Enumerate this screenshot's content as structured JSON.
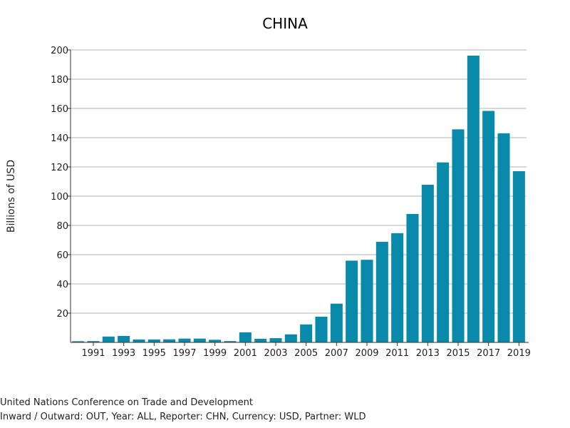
{
  "chart_data": {
    "type": "bar",
    "title": "CHINA",
    "xlabel": "",
    "ylabel": "Billions of USD",
    "ylim": [
      0,
      200
    ],
    "yticks": [
      20,
      40,
      60,
      80,
      100,
      120,
      140,
      160,
      180,
      200
    ],
    "grid": true,
    "bar_color": "#0a8aaa",
    "categories": [
      "1990",
      "1991",
      "1992",
      "1993",
      "1994",
      "1995",
      "1996",
      "1997",
      "1998",
      "1999",
      "2000",
      "2001",
      "2002",
      "2003",
      "2004",
      "2005",
      "2006",
      "2007",
      "2008",
      "2009",
      "2010",
      "2011",
      "2012",
      "2013",
      "2014",
      "2015",
      "2016",
      "2017",
      "2018",
      "2019"
    ],
    "tick_labels": [
      "1991",
      "1993",
      "1995",
      "1997",
      "1999",
      "2001",
      "2003",
      "2005",
      "2007",
      "2009",
      "2011",
      "2013",
      "2015",
      "2017",
      "2019"
    ],
    "values": [
      0.8,
      0.9,
      4.0,
      4.4,
      2.0,
      2.0,
      2.1,
      2.6,
      2.6,
      1.8,
      0.9,
      6.9,
      2.5,
      2.9,
      5.5,
      12.3,
      17.6,
      26.5,
      55.9,
      56.5,
      68.8,
      74.7,
      87.8,
      107.8,
      123.1,
      145.7,
      196.1,
      158.3,
      143.0,
      117.1
    ]
  },
  "footer": {
    "source": "United Nations Conference on Trade and Development",
    "query": "Inward / Outward: OUT, Year: ALL, Reporter: CHN, Currency: USD, Partner: WLD"
  }
}
